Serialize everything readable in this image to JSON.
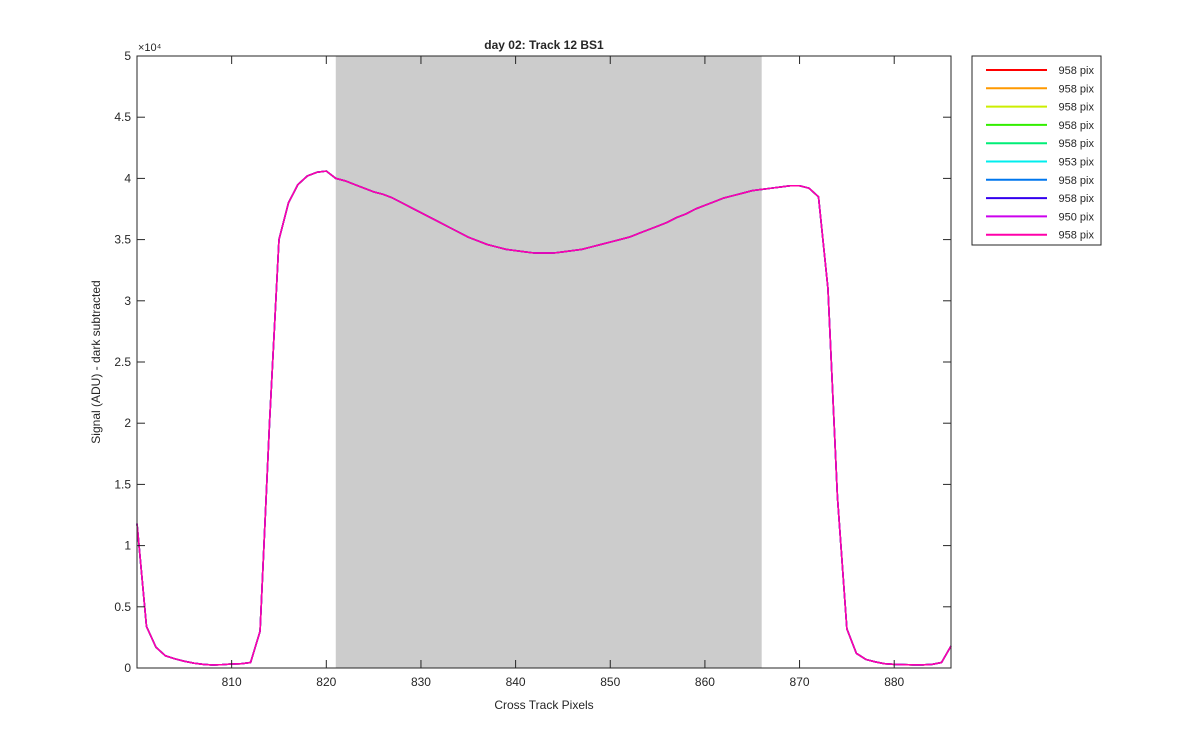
{
  "chart_data": {
    "type": "line",
    "title": "day 02: Track 12  BS1",
    "xlabel": "Cross Track Pixels",
    "ylabel": "Signal (ADU) - dark subtracted",
    "exponent_label": "×10⁴",
    "xlim": [
      800,
      886
    ],
    "ylim": [
      0,
      50000
    ],
    "xticks": [
      810,
      820,
      830,
      840,
      850,
      860,
      870,
      880
    ],
    "xtick_labels": [
      "810",
      "820",
      "830",
      "840",
      "850",
      "860",
      "870",
      "880"
    ],
    "yticks": [
      0,
      5000,
      10000,
      15000,
      20000,
      25000,
      30000,
      35000,
      40000,
      45000,
      50000
    ],
    "ytick_labels": [
      "0",
      "0.5",
      "1",
      "1.5",
      "2",
      "2.5",
      "3",
      "3.5",
      "4",
      "4.5",
      "5"
    ],
    "shaded_region": {
      "x_start": 821,
      "x_end": 866,
      "color": "#cccccc"
    },
    "grid": false,
    "legend_position": "outside-top-right",
    "x": [
      800,
      801,
      802,
      803,
      804,
      805,
      806,
      807,
      808,
      809,
      810,
      811,
      812,
      813,
      814,
      815,
      816,
      817,
      818,
      819,
      820,
      821,
      822,
      823,
      824,
      825,
      826,
      827,
      828,
      829,
      830,
      831,
      832,
      833,
      834,
      835,
      836,
      837,
      838,
      839,
      840,
      841,
      842,
      843,
      844,
      845,
      846,
      847,
      848,
      849,
      850,
      851,
      852,
      853,
      854,
      855,
      856,
      857,
      858,
      859,
      860,
      861,
      862,
      863,
      864,
      865,
      866,
      867,
      868,
      869,
      870,
      871,
      872,
      873,
      874,
      875,
      876,
      877,
      878,
      879,
      880,
      881,
      882,
      883,
      884,
      885,
      886
    ],
    "series": [
      {
        "name": "958 pix",
        "color": "#ff0000",
        "values": [
          11800,
          3400,
          1700,
          1000,
          750,
          550,
          400,
          300,
          250,
          280,
          330,
          350,
          450,
          3000,
          20000,
          35000,
          38000,
          39500,
          40200,
          40500,
          40600,
          40000,
          39800,
          39500,
          39200,
          38900,
          38700,
          38400,
          38000,
          37600,
          37200,
          36800,
          36400,
          36000,
          35600,
          35200,
          34900,
          34600,
          34400,
          34200,
          34100,
          34000,
          33900,
          33900,
          33900,
          34000,
          34100,
          34200,
          34400,
          34600,
          34800,
          35000,
          35200,
          35500,
          35800,
          36100,
          36400,
          36800,
          37100,
          37500,
          37800,
          38100,
          38400,
          38600,
          38800,
          39000,
          39100,
          39200,
          39300,
          39400,
          39400,
          39200,
          38500,
          31000,
          14000,
          3200,
          1200,
          700,
          500,
          350,
          300,
          280,
          260,
          260,
          300,
          450,
          1800
        ]
      },
      {
        "name": "958 pix",
        "color": "#ff9900",
        "values": [
          11800,
          3400,
          1700,
          1000,
          750,
          550,
          400,
          300,
          250,
          280,
          330,
          350,
          450,
          3000,
          20000,
          35000,
          38000,
          39500,
          40200,
          40500,
          40600,
          40000,
          39800,
          39500,
          39200,
          38900,
          38700,
          38400,
          38000,
          37600,
          37200,
          36800,
          36400,
          36000,
          35600,
          35200,
          34900,
          34600,
          34400,
          34200,
          34100,
          34000,
          33900,
          33900,
          33900,
          34000,
          34100,
          34200,
          34400,
          34600,
          34800,
          35000,
          35200,
          35500,
          35800,
          36100,
          36400,
          36800,
          37100,
          37500,
          37800,
          38100,
          38400,
          38600,
          38800,
          39000,
          39100,
          39200,
          39300,
          39400,
          39400,
          39200,
          38500,
          31000,
          14000,
          3200,
          1200,
          700,
          500,
          350,
          300,
          280,
          260,
          260,
          300,
          450,
          1800
        ]
      },
      {
        "name": "958 pix",
        "color": "#ccee00",
        "values": [
          11800,
          3400,
          1700,
          1000,
          750,
          550,
          400,
          300,
          250,
          280,
          330,
          350,
          450,
          3000,
          20000,
          35000,
          38000,
          39500,
          40200,
          40500,
          40600,
          40000,
          39800,
          39500,
          39200,
          38900,
          38700,
          38400,
          38000,
          37600,
          37200,
          36800,
          36400,
          36000,
          35600,
          35200,
          34900,
          34600,
          34400,
          34200,
          34100,
          34000,
          33900,
          33900,
          33900,
          34000,
          34100,
          34200,
          34400,
          34600,
          34800,
          35000,
          35200,
          35500,
          35800,
          36100,
          36400,
          36800,
          37100,
          37500,
          37800,
          38100,
          38400,
          38600,
          38800,
          39000,
          39100,
          39200,
          39300,
          39400,
          39400,
          39200,
          38500,
          31000,
          14000,
          3200,
          1200,
          700,
          500,
          350,
          300,
          280,
          260,
          260,
          300,
          450,
          1800
        ]
      },
      {
        "name": "958 pix",
        "color": "#33ee00",
        "values": [
          11800,
          3400,
          1700,
          1000,
          750,
          550,
          400,
          300,
          250,
          280,
          330,
          350,
          450,
          3000,
          20000,
          35000,
          38000,
          39500,
          40200,
          40500,
          40600,
          40000,
          39800,
          39500,
          39200,
          38900,
          38700,
          38400,
          38000,
          37600,
          37200,
          36800,
          36400,
          36000,
          35600,
          35200,
          34900,
          34600,
          34400,
          34200,
          34100,
          34000,
          33900,
          33900,
          33900,
          34000,
          34100,
          34200,
          34400,
          34600,
          34800,
          35000,
          35200,
          35500,
          35800,
          36100,
          36400,
          36800,
          37100,
          37500,
          37800,
          38100,
          38400,
          38600,
          38800,
          39000,
          39100,
          39200,
          39300,
          39400,
          39400,
          39200,
          38500,
          31000,
          14000,
          3200,
          1200,
          700,
          500,
          350,
          300,
          280,
          260,
          260,
          300,
          450,
          1800
        ]
      },
      {
        "name": "958 pix",
        "color": "#00ee77",
        "values": [
          11800,
          3400,
          1700,
          1000,
          750,
          550,
          400,
          300,
          250,
          280,
          330,
          350,
          450,
          3000,
          20000,
          35000,
          38000,
          39500,
          40200,
          40500,
          40600,
          40000,
          39800,
          39500,
          39200,
          38900,
          38700,
          38400,
          38000,
          37600,
          37200,
          36800,
          36400,
          36000,
          35600,
          35200,
          34900,
          34600,
          34400,
          34200,
          34100,
          34000,
          33900,
          33900,
          33900,
          34000,
          34100,
          34200,
          34400,
          34600,
          34800,
          35000,
          35200,
          35500,
          35800,
          36100,
          36400,
          36800,
          37100,
          37500,
          37800,
          38100,
          38400,
          38600,
          38800,
          39000,
          39100,
          39200,
          39300,
          39400,
          39400,
          39200,
          38500,
          31000,
          14000,
          3200,
          1200,
          700,
          500,
          350,
          300,
          280,
          260,
          260,
          300,
          450,
          1800
        ]
      },
      {
        "name": "953 pix",
        "color": "#00eeee",
        "values": [
          11800,
          3400,
          1700,
          1000,
          750,
          550,
          400,
          300,
          250,
          280,
          330,
          350,
          450,
          3000,
          20000,
          35000,
          38000,
          39500,
          40200,
          40500,
          40600,
          40000,
          39800,
          39500,
          39200,
          38900,
          38700,
          38400,
          38000,
          37600,
          37200,
          36800,
          36400,
          36000,
          35600,
          35200,
          34900,
          34600,
          34400,
          34200,
          34100,
          34000,
          33900,
          33900,
          33900,
          34000,
          34100,
          34200,
          34400,
          34600,
          34800,
          35000,
          35200,
          35500,
          35800,
          36100,
          36400,
          36800,
          37100,
          37500,
          37800,
          38100,
          38400,
          38600,
          38800,
          39000,
          39100,
          39200,
          39300,
          39400,
          39400,
          39200,
          38500,
          31000,
          14000,
          3200,
          1200,
          700,
          500,
          350,
          300,
          280,
          260,
          260,
          300,
          450,
          1800
        ]
      },
      {
        "name": "958 pix",
        "color": "#0077ee",
        "values": [
          11800,
          3400,
          1700,
          1000,
          750,
          550,
          400,
          300,
          250,
          280,
          330,
          350,
          450,
          3000,
          20000,
          35000,
          38000,
          39500,
          40200,
          40500,
          40600,
          40000,
          39800,
          39500,
          39200,
          38900,
          38700,
          38400,
          38000,
          37600,
          37200,
          36800,
          36400,
          36000,
          35600,
          35200,
          34900,
          34600,
          34400,
          34200,
          34100,
          34000,
          33900,
          33900,
          33900,
          34000,
          34100,
          34200,
          34400,
          34600,
          34800,
          35000,
          35200,
          35500,
          35800,
          36100,
          36400,
          36800,
          37100,
          37500,
          37800,
          38100,
          38400,
          38600,
          38800,
          39000,
          39100,
          39200,
          39300,
          39400,
          39400,
          39200,
          38500,
          31000,
          14000,
          3200,
          1200,
          700,
          500,
          350,
          300,
          280,
          260,
          260,
          300,
          450,
          1800
        ]
      },
      {
        "name": "958 pix",
        "color": "#3300ee",
        "values": [
          11800,
          3400,
          1700,
          1000,
          750,
          550,
          400,
          300,
          250,
          280,
          330,
          350,
          450,
          3000,
          20000,
          35000,
          38000,
          39500,
          40200,
          40500,
          40600,
          40000,
          39800,
          39500,
          39200,
          38900,
          38700,
          38400,
          38000,
          37600,
          37200,
          36800,
          36400,
          36000,
          35600,
          35200,
          34900,
          34600,
          34400,
          34200,
          34100,
          34000,
          33900,
          33900,
          33900,
          34000,
          34100,
          34200,
          34400,
          34600,
          34800,
          35000,
          35200,
          35500,
          35800,
          36100,
          36400,
          36800,
          37100,
          37500,
          37800,
          38100,
          38400,
          38600,
          38800,
          39000,
          39100,
          39200,
          39300,
          39400,
          39400,
          39200,
          38500,
          31000,
          14000,
          3200,
          1200,
          700,
          500,
          350,
          300,
          280,
          260,
          260,
          300,
          450,
          1800
        ]
      },
      {
        "name": "950 pix",
        "color": "#cc00ee",
        "values": [
          11800,
          3400,
          1700,
          1000,
          750,
          550,
          400,
          300,
          250,
          280,
          330,
          350,
          450,
          3000,
          20000,
          35000,
          38000,
          39500,
          40200,
          40500,
          40600,
          40000,
          39800,
          39500,
          39200,
          38900,
          38700,
          38400,
          38000,
          37600,
          37200,
          36800,
          36400,
          36000,
          35600,
          35200,
          34900,
          34600,
          34400,
          34200,
          34100,
          34000,
          33900,
          33900,
          33900,
          34000,
          34100,
          34200,
          34400,
          34600,
          34800,
          35000,
          35200,
          35500,
          35800,
          36100,
          36400,
          36800,
          37100,
          37500,
          37800,
          38100,
          38400,
          38600,
          38800,
          39000,
          39100,
          39200,
          39300,
          39400,
          39400,
          39200,
          38500,
          31000,
          14000,
          3200,
          1200,
          700,
          500,
          350,
          300,
          280,
          260,
          260,
          300,
          450,
          1800
        ]
      },
      {
        "name": "958 pix",
        "color": "#ff00aa",
        "values": [
          11800,
          3400,
          1700,
          1000,
          750,
          550,
          400,
          300,
          250,
          280,
          330,
          350,
          450,
          3000,
          20000,
          35000,
          38000,
          39500,
          40200,
          40500,
          40600,
          40000,
          39800,
          39500,
          39200,
          38900,
          38700,
          38400,
          38000,
          37600,
          37200,
          36800,
          36400,
          36000,
          35600,
          35200,
          34900,
          34600,
          34400,
          34200,
          34100,
          34000,
          33900,
          33900,
          33900,
          34000,
          34100,
          34200,
          34400,
          34600,
          34800,
          35000,
          35200,
          35500,
          35800,
          36100,
          36400,
          36800,
          37100,
          37500,
          37800,
          38100,
          38400,
          38600,
          38800,
          39000,
          39100,
          39200,
          39300,
          39400,
          39400,
          39200,
          38500,
          31000,
          14000,
          3200,
          1200,
          700,
          500,
          350,
          300,
          280,
          260,
          260,
          300,
          450,
          1800
        ]
      }
    ]
  }
}
